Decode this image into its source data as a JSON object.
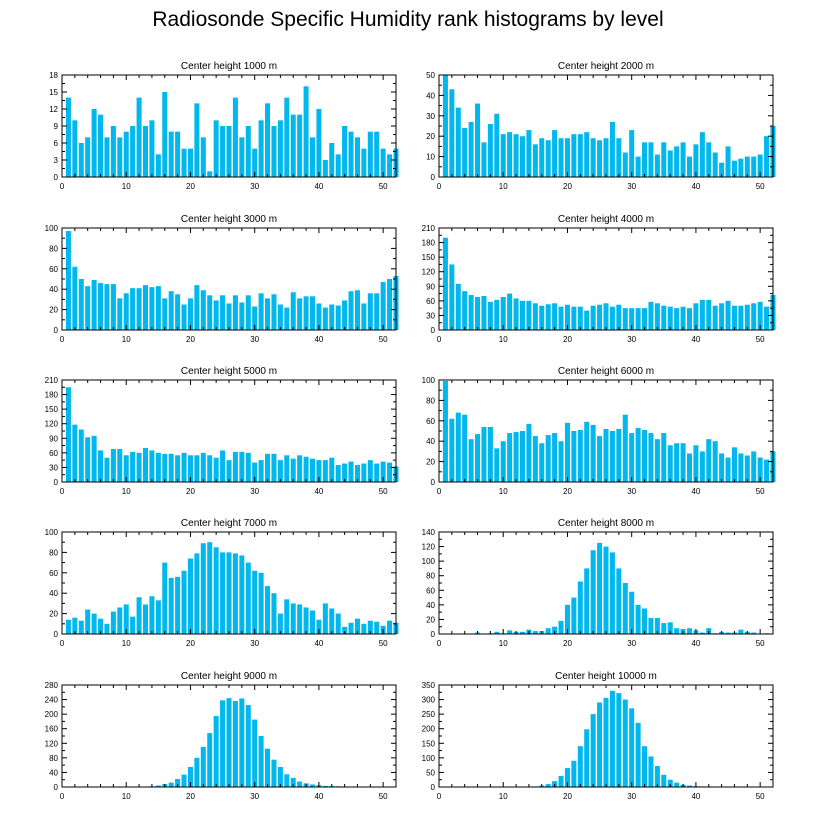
{
  "title": "Radiosonde Specific Humidity rank histograms by level",
  "bar_color": "#00b7ee",
  "chart_data": [
    {
      "type": "bar",
      "title": "Center height 1000 m",
      "xlabel": "",
      "ylabel": "",
      "xlim": [
        0,
        52
      ],
      "ylim": [
        0,
        18
      ],
      "yticks": [
        0,
        3,
        6,
        9,
        12,
        15,
        18
      ],
      "xticks": [
        0,
        10,
        20,
        30,
        40,
        50
      ],
      "values": [
        14,
        10,
        6,
        7,
        12,
        11,
        7,
        9,
        7,
        8,
        9,
        14,
        9,
        10,
        4,
        15,
        8,
        8,
        5,
        5,
        13,
        7,
        1,
        10,
        9,
        9,
        14,
        7,
        9,
        5,
        10,
        13,
        9,
        10,
        14,
        11,
        11,
        16,
        7,
        12,
        3,
        6,
        4,
        9,
        8,
        7,
        5,
        8,
        8,
        5,
        4,
        5
      ]
    },
    {
      "type": "bar",
      "title": "Center height 2000 m",
      "xlabel": "",
      "ylabel": "",
      "xlim": [
        0,
        52
      ],
      "ylim": [
        0,
        50
      ],
      "yticks": [
        0,
        10,
        20,
        30,
        40,
        50
      ],
      "xticks": [
        0,
        10,
        20,
        30,
        40,
        50
      ],
      "values": [
        50,
        43,
        34,
        24,
        27,
        36,
        17,
        26,
        31,
        21,
        22,
        21,
        20,
        23,
        16,
        19,
        18,
        23,
        19,
        19,
        21,
        21,
        22,
        19,
        18,
        19,
        27,
        19,
        12,
        23,
        10,
        17,
        17,
        11,
        17,
        13,
        15,
        17,
        10,
        16,
        22,
        17,
        12,
        7,
        15,
        8,
        9,
        10,
        10,
        11,
        20,
        25
      ]
    },
    {
      "type": "bar",
      "title": "Center height 3000 m",
      "xlabel": "",
      "ylabel": "",
      "xlim": [
        0,
        52
      ],
      "ylim": [
        0,
        100
      ],
      "yticks": [
        0,
        20,
        40,
        60,
        80,
        100
      ],
      "xticks": [
        0,
        10,
        20,
        30,
        40,
        50
      ],
      "values": [
        97,
        62,
        50,
        43,
        49,
        46,
        45,
        45,
        31,
        36,
        41,
        41,
        44,
        42,
        43,
        31,
        38,
        35,
        25,
        31,
        44,
        39,
        34,
        29,
        34,
        26,
        34,
        27,
        34,
        23,
        36,
        31,
        35,
        25,
        22,
        37,
        31,
        33,
        33,
        26,
        22,
        25,
        24,
        29,
        38,
        39,
        26,
        36,
        36,
        47,
        50,
        53
      ]
    },
    {
      "type": "bar",
      "title": "Center height 4000 m",
      "xlabel": "",
      "ylabel": "",
      "xlim": [
        0,
        52
      ],
      "ylim": [
        0,
        210
      ],
      "yticks": [
        0,
        30,
        60,
        90,
        120,
        150,
        180,
        210
      ],
      "xticks": [
        0,
        10,
        20,
        30,
        40,
        50
      ],
      "values": [
        190,
        135,
        95,
        80,
        72,
        68,
        70,
        58,
        62,
        68,
        75,
        65,
        60,
        60,
        55,
        50,
        53,
        55,
        48,
        52,
        48,
        48,
        40,
        50,
        52,
        55,
        48,
        52,
        45,
        45,
        45,
        45,
        58,
        55,
        50,
        48,
        45,
        48,
        45,
        55,
        62,
        62,
        50,
        55,
        60,
        50,
        50,
        52,
        55,
        58,
        48,
        72
      ]
    },
    {
      "type": "bar",
      "title": "Center height 5000 m",
      "xlabel": "",
      "ylabel": "",
      "xlim": [
        0,
        52
      ],
      "ylim": [
        0,
        210
      ],
      "yticks": [
        0,
        30,
        60,
        90,
        120,
        150,
        180,
        210
      ],
      "xticks": [
        0,
        10,
        20,
        30,
        40,
        50
      ],
      "values": [
        195,
        118,
        108,
        92,
        95,
        65,
        50,
        68,
        68,
        55,
        62,
        60,
        70,
        65,
        60,
        58,
        58,
        55,
        60,
        55,
        55,
        60,
        55,
        50,
        65,
        45,
        62,
        62,
        60,
        40,
        45,
        58,
        58,
        45,
        55,
        48,
        55,
        52,
        48,
        45,
        45,
        50,
        35,
        38,
        42,
        35,
        38,
        45,
        38,
        42,
        40,
        32
      ]
    },
    {
      "type": "bar",
      "title": "Center height 6000 m",
      "xlabel": "",
      "ylabel": "",
      "xlim": [
        0,
        52
      ],
      "ylim": [
        0,
        100
      ],
      "yticks": [
        0,
        20,
        40,
        60,
        80,
        100
      ],
      "xticks": [
        0,
        10,
        20,
        30,
        40,
        50
      ],
      "values": [
        99,
        62,
        68,
        66,
        42,
        47,
        54,
        54,
        33,
        40,
        48,
        49,
        50,
        57,
        45,
        38,
        46,
        48,
        40,
        58,
        50,
        51,
        59,
        56,
        45,
        52,
        50,
        52,
        66,
        48,
        53,
        51,
        48,
        42,
        48,
        36,
        38,
        38,
        28,
        36,
        30,
        42,
        40,
        28,
        24,
        34,
        28,
        26,
        30,
        24,
        22,
        30
      ]
    },
    {
      "type": "bar",
      "title": "Center height 7000 m",
      "xlabel": "",
      "ylabel": "",
      "xlim": [
        0,
        52
      ],
      "ylim": [
        0,
        100
      ],
      "yticks": [
        0,
        20,
        40,
        60,
        80,
        100
      ],
      "xticks": [
        0,
        10,
        20,
        30,
        40,
        50
      ],
      "values": [
        14,
        16,
        13,
        24,
        20,
        15,
        10,
        22,
        26,
        29,
        17,
        36,
        29,
        37,
        33,
        70,
        55,
        56,
        62,
        74,
        79,
        89,
        90,
        85,
        80,
        80,
        79,
        77,
        70,
        62,
        60,
        47,
        40,
        20,
        34,
        30,
        29,
        26,
        23,
        14,
        30,
        25,
        20,
        7,
        11,
        15,
        10,
        13,
        12,
        8,
        13,
        11
      ]
    },
    {
      "type": "bar",
      "title": "Center height 8000 m",
      "xlabel": "",
      "ylabel": "",
      "xlim": [
        0,
        52
      ],
      "ylim": [
        0,
        140
      ],
      "yticks": [
        0,
        20,
        40,
        60,
        80,
        100,
        120,
        140
      ],
      "xticks": [
        0,
        10,
        20,
        30,
        40,
        50
      ],
      "values": [
        0,
        0,
        0,
        0,
        0,
        2,
        0,
        1,
        3,
        1,
        5,
        3,
        3,
        6,
        4,
        4,
        8,
        10,
        18,
        40,
        50,
        72,
        90,
        115,
        125,
        120,
        112,
        90,
        70,
        58,
        40,
        35,
        22,
        22,
        15,
        16,
        8,
        7,
        8,
        5,
        2,
        8,
        1,
        3,
        2,
        2,
        6,
        3,
        2,
        0,
        1,
        0
      ]
    },
    {
      "type": "bar",
      "title": "Center height 9000 m",
      "xlabel": "",
      "ylabel": "",
      "xlim": [
        0,
        52
      ],
      "ylim": [
        0,
        280
      ],
      "yticks": [
        0,
        40,
        80,
        120,
        160,
        200,
        240,
        280
      ],
      "xticks": [
        0,
        10,
        20,
        30,
        40,
        50
      ],
      "values": [
        0,
        0,
        0,
        0,
        0,
        0,
        0,
        0,
        0,
        0,
        0,
        0,
        1,
        2,
        4,
        8,
        12,
        22,
        34,
        55,
        80,
        110,
        148,
        195,
        238,
        244,
        236,
        243,
        225,
        185,
        140,
        105,
        75,
        55,
        35,
        25,
        15,
        10,
        7,
        5,
        3,
        3,
        2,
        1,
        1,
        1,
        0,
        0,
        0,
        0,
        0,
        0
      ]
    },
    {
      "type": "bar",
      "title": "Center height 10000 m",
      "xlabel": "",
      "ylabel": "",
      "xlim": [
        0,
        52
      ],
      "ylim": [
        0,
        350
      ],
      "yticks": [
        0,
        50,
        100,
        150,
        200,
        250,
        300,
        350
      ],
      "xticks": [
        0,
        10,
        20,
        30,
        40,
        50
      ],
      "values": [
        0,
        0,
        0,
        0,
        0,
        0,
        0,
        0,
        0,
        0,
        0,
        0,
        0,
        1,
        2,
        5,
        10,
        20,
        38,
        65,
        90,
        140,
        198,
        250,
        290,
        306,
        330,
        322,
        300,
        270,
        220,
        140,
        105,
        72,
        42,
        25,
        15,
        8,
        5,
        3,
        2,
        2,
        1,
        1,
        0,
        0,
        0,
        0,
        0,
        0,
        0,
        0
      ]
    }
  ]
}
